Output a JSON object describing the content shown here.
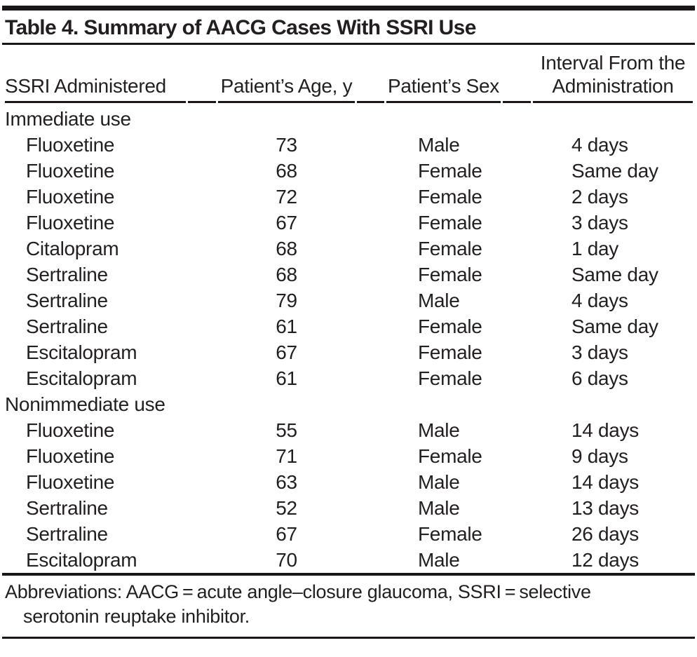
{
  "table": {
    "title": "Table 4. Summary of AACG Cases With SSRI Use",
    "columns": [
      {
        "label": "SSRI Administered"
      },
      {
        "label": "Patient’s Age, y"
      },
      {
        "label": "Patient’s Sex"
      },
      {
        "label": "Interval From the\nAdministration"
      }
    ],
    "sections": [
      {
        "header": "Immediate use",
        "rows": [
          {
            "drug": "Fluoxetine",
            "age": "73",
            "sex": "Male",
            "interval": "4 days"
          },
          {
            "drug": "Fluoxetine",
            "age": "68",
            "sex": "Female",
            "interval": "Same day"
          },
          {
            "drug": "Fluoxetine",
            "age": "72",
            "sex": "Female",
            "interval": "2 days"
          },
          {
            "drug": "Fluoxetine",
            "age": "67",
            "sex": "Female",
            "interval": "3 days"
          },
          {
            "drug": "Citalopram",
            "age": "68",
            "sex": "Female",
            "interval": "1 day"
          },
          {
            "drug": "Sertraline",
            "age": "68",
            "sex": "Female",
            "interval": "Same day"
          },
          {
            "drug": "Sertraline",
            "age": "79",
            "sex": "Male",
            "interval": "4 days"
          },
          {
            "drug": "Sertraline",
            "age": "61",
            "sex": "Female",
            "interval": "Same day"
          },
          {
            "drug": "Escitalopram",
            "age": "67",
            "sex": "Female",
            "interval": "3 days"
          },
          {
            "drug": "Escitalopram",
            "age": "61",
            "sex": "Female",
            "interval": "6 days"
          }
        ]
      },
      {
        "header": "Nonimmediate use",
        "rows": [
          {
            "drug": "Fluoxetine",
            "age": "55",
            "sex": "Male",
            "interval": "14 days"
          },
          {
            "drug": "Fluoxetine",
            "age": "71",
            "sex": "Female",
            "interval": "9 days"
          },
          {
            "drug": "Fluoxetine",
            "age": "63",
            "sex": "Male",
            "interval": "14 days"
          },
          {
            "drug": "Sertraline",
            "age": "52",
            "sex": "Male",
            "interval": "13 days"
          },
          {
            "drug": "Sertraline",
            "age": "67",
            "sex": "Female",
            "interval": "26 days"
          },
          {
            "drug": "Escitalopram",
            "age": "70",
            "sex": "Male",
            "interval": "12 days"
          }
        ]
      }
    ],
    "footnote": {
      "lines": [
        "Abbreviations: AACG = acute angle–closure glaucoma, SSRI = selective",
        "serotonin reuptake inhibitor."
      ]
    },
    "colors": {
      "text": "#231f20",
      "rule": "#1b1718",
      "background": "#ffffff"
    }
  }
}
